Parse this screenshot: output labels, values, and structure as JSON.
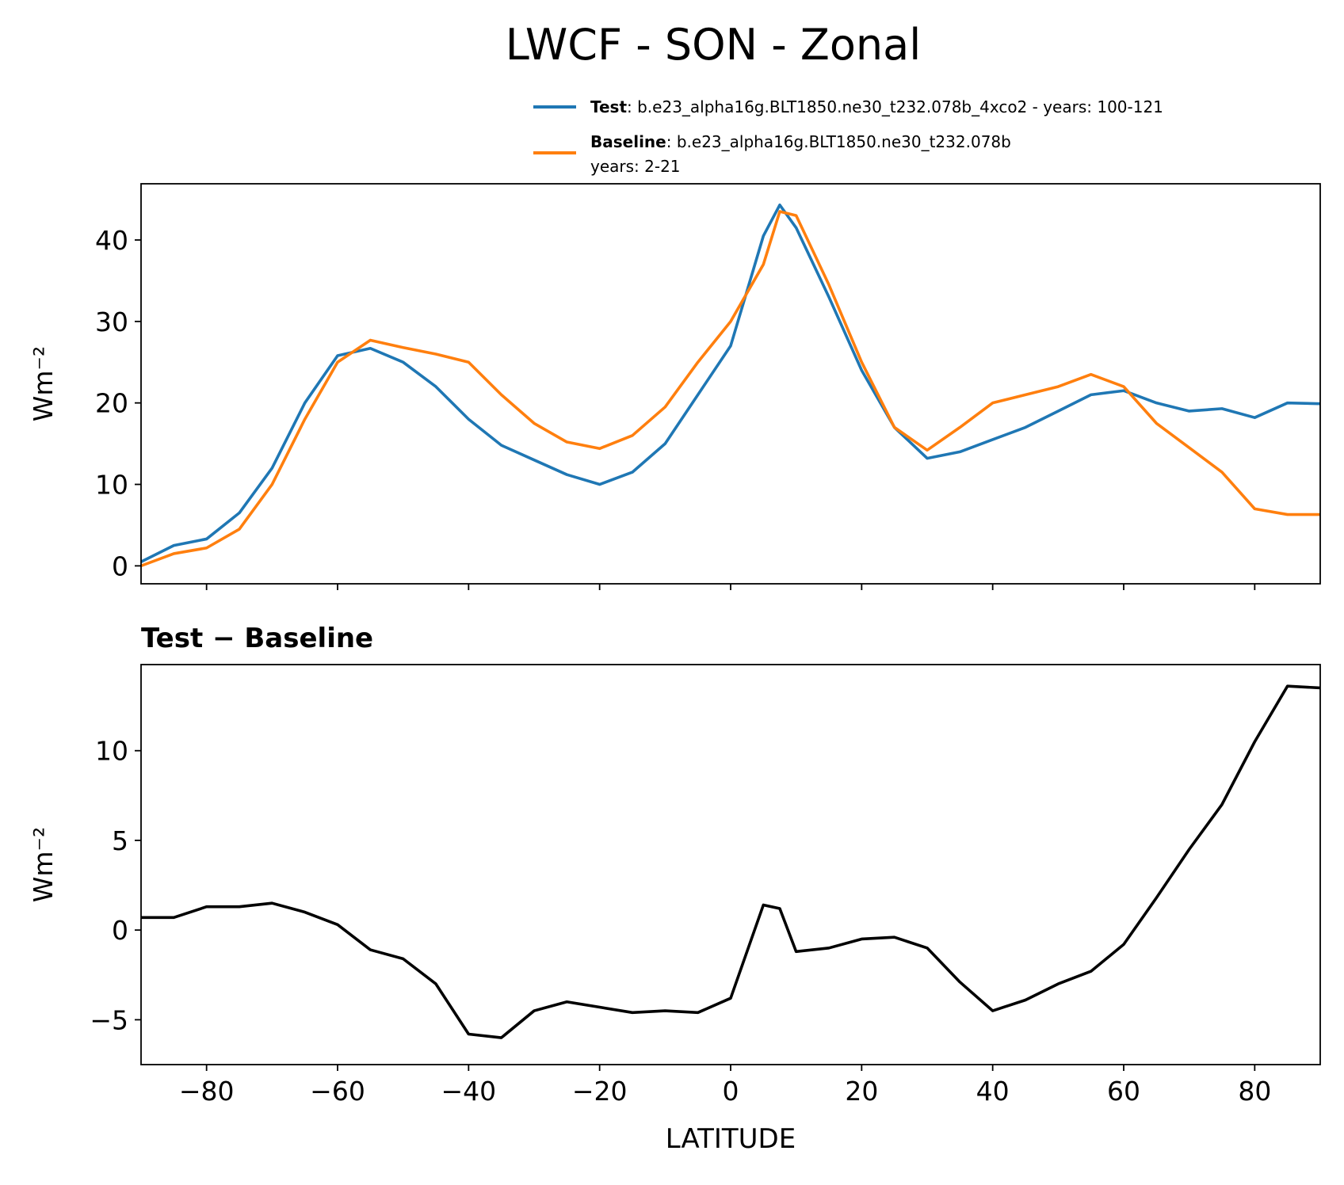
{
  "chart_data": [
    {
      "type": "line",
      "title": "LWCF - SON - Zonal",
      "ylabel": "Wm⁻²",
      "x": [
        -90,
        -85,
        -80,
        -75,
        -70,
        -65,
        -60,
        -55,
        -50,
        -45,
        -40,
        -35,
        -30,
        -25,
        -20,
        -15,
        -10,
        -5,
        0,
        5,
        7.5,
        10,
        15,
        20,
        25,
        30,
        35,
        40,
        45,
        50,
        55,
        60,
        65,
        70,
        75,
        80,
        85,
        90
      ],
      "series": [
        {
          "name": "Test",
          "description": [
            ": b.e23_alpha16g.BLT1850.ne30_t232.078b_4xco2 - years: 100-121"
          ],
          "color": "#1f77b4",
          "values": [
            0.5,
            2.5,
            3.3,
            6.5,
            12,
            20,
            25.8,
            26.7,
            25,
            22,
            18,
            14.8,
            13,
            11.2,
            10,
            11.5,
            15,
            21,
            27,
            40.5,
            44.3,
            41.5,
            33,
            24,
            17,
            13.2,
            14,
            15.5,
            17,
            19,
            21,
            21.5,
            20,
            19,
            19.3,
            18.2,
            20,
            19.9
          ]
        },
        {
          "name": "Baseline",
          "description": [
            ": b.e23_alpha16g.BLT1850.ne30_t232.078b",
            "years: 2-21"
          ],
          "color": "#ff7f0e",
          "values": [
            0,
            1.5,
            2.2,
            4.5,
            10,
            18,
            25,
            27.7,
            26.8,
            26,
            25,
            21,
            17.5,
            15.2,
            14.4,
            16,
            19.5,
            25,
            30,
            37,
            43.5,
            43,
            34.5,
            25,
            17,
            14.2,
            17,
            20,
            21,
            22,
            23.5,
            22,
            17.5,
            14.5,
            11.5,
            7,
            6.3,
            6.3
          ]
        }
      ],
      "xlim": [
        -90,
        90
      ],
      "xticks": [
        -80,
        -60,
        -40,
        -20,
        0,
        20,
        40,
        60,
        80
      ],
      "ylim": [
        -2.2,
        46.9
      ],
      "yticks": [
        0,
        10,
        20,
        30,
        40
      ]
    },
    {
      "type": "line",
      "title": "Test − Baseline",
      "ylabel": "Wm⁻²",
      "xlabel": "LATITUDE",
      "x": [
        -90,
        -85,
        -80,
        -75,
        -70,
        -65,
        -60,
        -55,
        -50,
        -45,
        -40,
        -35,
        -30,
        -25,
        -20,
        -15,
        -10,
        -5,
        0,
        5,
        7.5,
        10,
        15,
        20,
        25,
        30,
        35,
        40,
        45,
        50,
        55,
        60,
        65,
        70,
        75,
        80,
        85,
        90
      ],
      "series": [
        {
          "color": "#000000",
          "values": [
            0.7,
            0.7,
            1.3,
            1.3,
            1.5,
            1.0,
            0.3,
            -1.1,
            -1.6,
            -3.0,
            -5.8,
            -6.0,
            -4.5,
            -4.0,
            -4.3,
            -4.6,
            -4.5,
            -4.6,
            -3.8,
            1.4,
            1.2,
            -1.2,
            -1.0,
            -0.5,
            -0.4,
            -1.0,
            -2.9,
            -4.5,
            -3.9,
            -3.0,
            -2.3,
            -0.8,
            1.8,
            4.5,
            7.0,
            10.5,
            13.6,
            13.5
          ]
        }
      ],
      "xlim": [
        -90,
        90
      ],
      "xticks": [
        {
          "value": -80,
          "label": "−80"
        },
        {
          "value": -60,
          "label": "−60"
        },
        {
          "value": -40,
          "label": "−40"
        },
        {
          "value": -20,
          "label": "−20"
        },
        0,
        20,
        40,
        60,
        80
      ],
      "ylim": [
        -7.5,
        14.8
      ],
      "yticks": [
        {
          "value": -5,
          "label": "−5"
        },
        0,
        5,
        10
      ]
    }
  ]
}
